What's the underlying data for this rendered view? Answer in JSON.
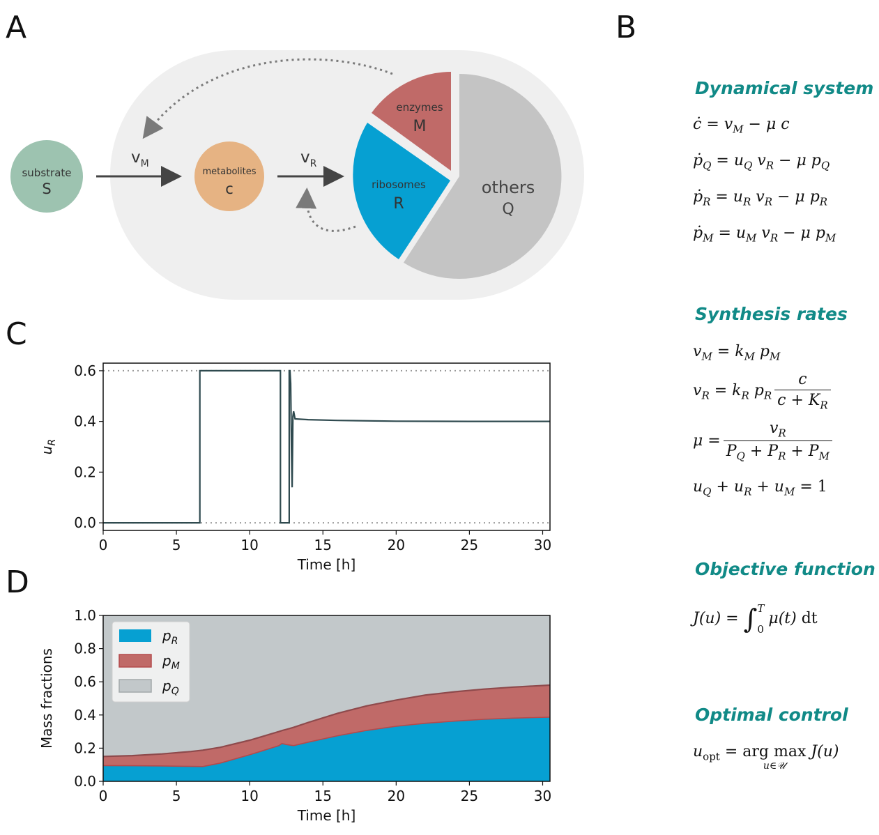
{
  "panels": {
    "a": "A",
    "b": "B",
    "c": "C",
    "d": "D"
  },
  "diagram": {
    "substrate_label": "substrate",
    "substrate_symbol": "S",
    "metabolites_label": "metabolites",
    "metabolites_symbol": "c",
    "flux_m": "v",
    "flux_m_sub": "M",
    "flux_r": "v",
    "flux_r_sub": "R",
    "enzymes_label": "enzymes",
    "enzymes_symbol": "M",
    "ribosomes_label": "ribosomes",
    "ribosomes_symbol": "R",
    "others_label": "others",
    "others_symbol": "Q",
    "colors": {
      "substrate": "#9dc3b0",
      "metabolites": "#e6b383",
      "enzymes": "#c06a68",
      "ribosomes": "#06a0d2",
      "others": "#c4c4c4",
      "cell": "#efefef"
    }
  },
  "sections": {
    "dynamical_system": {
      "title": "Dynamical system"
    },
    "synthesis_rates": {
      "title": "Synthesis rates"
    },
    "objective_function": {
      "title": "Objective function"
    },
    "optimal_control": {
      "title": "Optimal control"
    }
  },
  "chart_data": [
    {
      "type": "line",
      "xlabel": "Time [h]",
      "ylabel": "u_R",
      "xlim": [
        0,
        30.5
      ],
      "ylim": [
        -0.03,
        0.63
      ],
      "xticks": [
        0,
        5,
        10,
        15,
        20,
        25,
        30
      ],
      "yticks": [
        0.0,
        0.2,
        0.4,
        0.6
      ],
      "reference_lines": [
        0.0,
        0.6
      ],
      "line_color": "#2f4a4f",
      "series": [
        {
          "x": [
            0,
            6.6,
            6.6,
            12.1,
            12.1,
            12.7,
            12.7,
            12.75,
            12.8,
            12.85,
            12.9,
            12.95,
            13.0,
            13.1,
            13.4,
            14,
            16,
            20,
            25,
            30.5
          ],
          "y": [
            0,
            0,
            0.6,
            0.6,
            0,
            0,
            0.6,
            0.6,
            0.55,
            0.3,
            0.14,
            0.42,
            0.44,
            0.41,
            0.409,
            0.407,
            0.404,
            0.401,
            0.4,
            0.4
          ]
        }
      ]
    },
    {
      "type": "area",
      "xlabel": "Time [h]",
      "ylabel": "Mass fractions",
      "xlim": [
        0,
        30.5
      ],
      "ylim": [
        0,
        1.0
      ],
      "xticks": [
        0,
        5,
        10,
        15,
        20,
        25,
        30
      ],
      "yticks": [
        0.0,
        0.2,
        0.4,
        0.6,
        0.8,
        1.0
      ],
      "legend": {
        "placement": "top-left",
        "entries": [
          {
            "label": "p_R",
            "sym": "p",
            "sub": "R",
            "color": "#06a0d2"
          },
          {
            "label": "p_M",
            "sym": "p",
            "sub": "M",
            "color": "#c06a68"
          },
          {
            "label": "p_Q",
            "sym": "p",
            "sub": "Q",
            "color": "#c2c8ca"
          }
        ]
      },
      "x": [
        0,
        2,
        4,
        6,
        6.8,
        8,
        10,
        12,
        12.2,
        12.5,
        13,
        14,
        16,
        18,
        20,
        22,
        24,
        26,
        28,
        30.5
      ],
      "p_R_cumulative": [
        0.095,
        0.094,
        0.093,
        0.09,
        0.089,
        0.11,
        0.16,
        0.215,
        0.228,
        0.222,
        0.215,
        0.236,
        0.275,
        0.307,
        0.332,
        0.35,
        0.363,
        0.374,
        0.381,
        0.387
      ],
      "p_R_plus_p_M": [
        0.15,
        0.155,
        0.165,
        0.18,
        0.188,
        0.205,
        0.248,
        0.3,
        0.306,
        0.313,
        0.325,
        0.355,
        0.41,
        0.455,
        0.49,
        0.52,
        0.54,
        0.556,
        0.568,
        0.58
      ],
      "total": 1.0
    }
  ]
}
